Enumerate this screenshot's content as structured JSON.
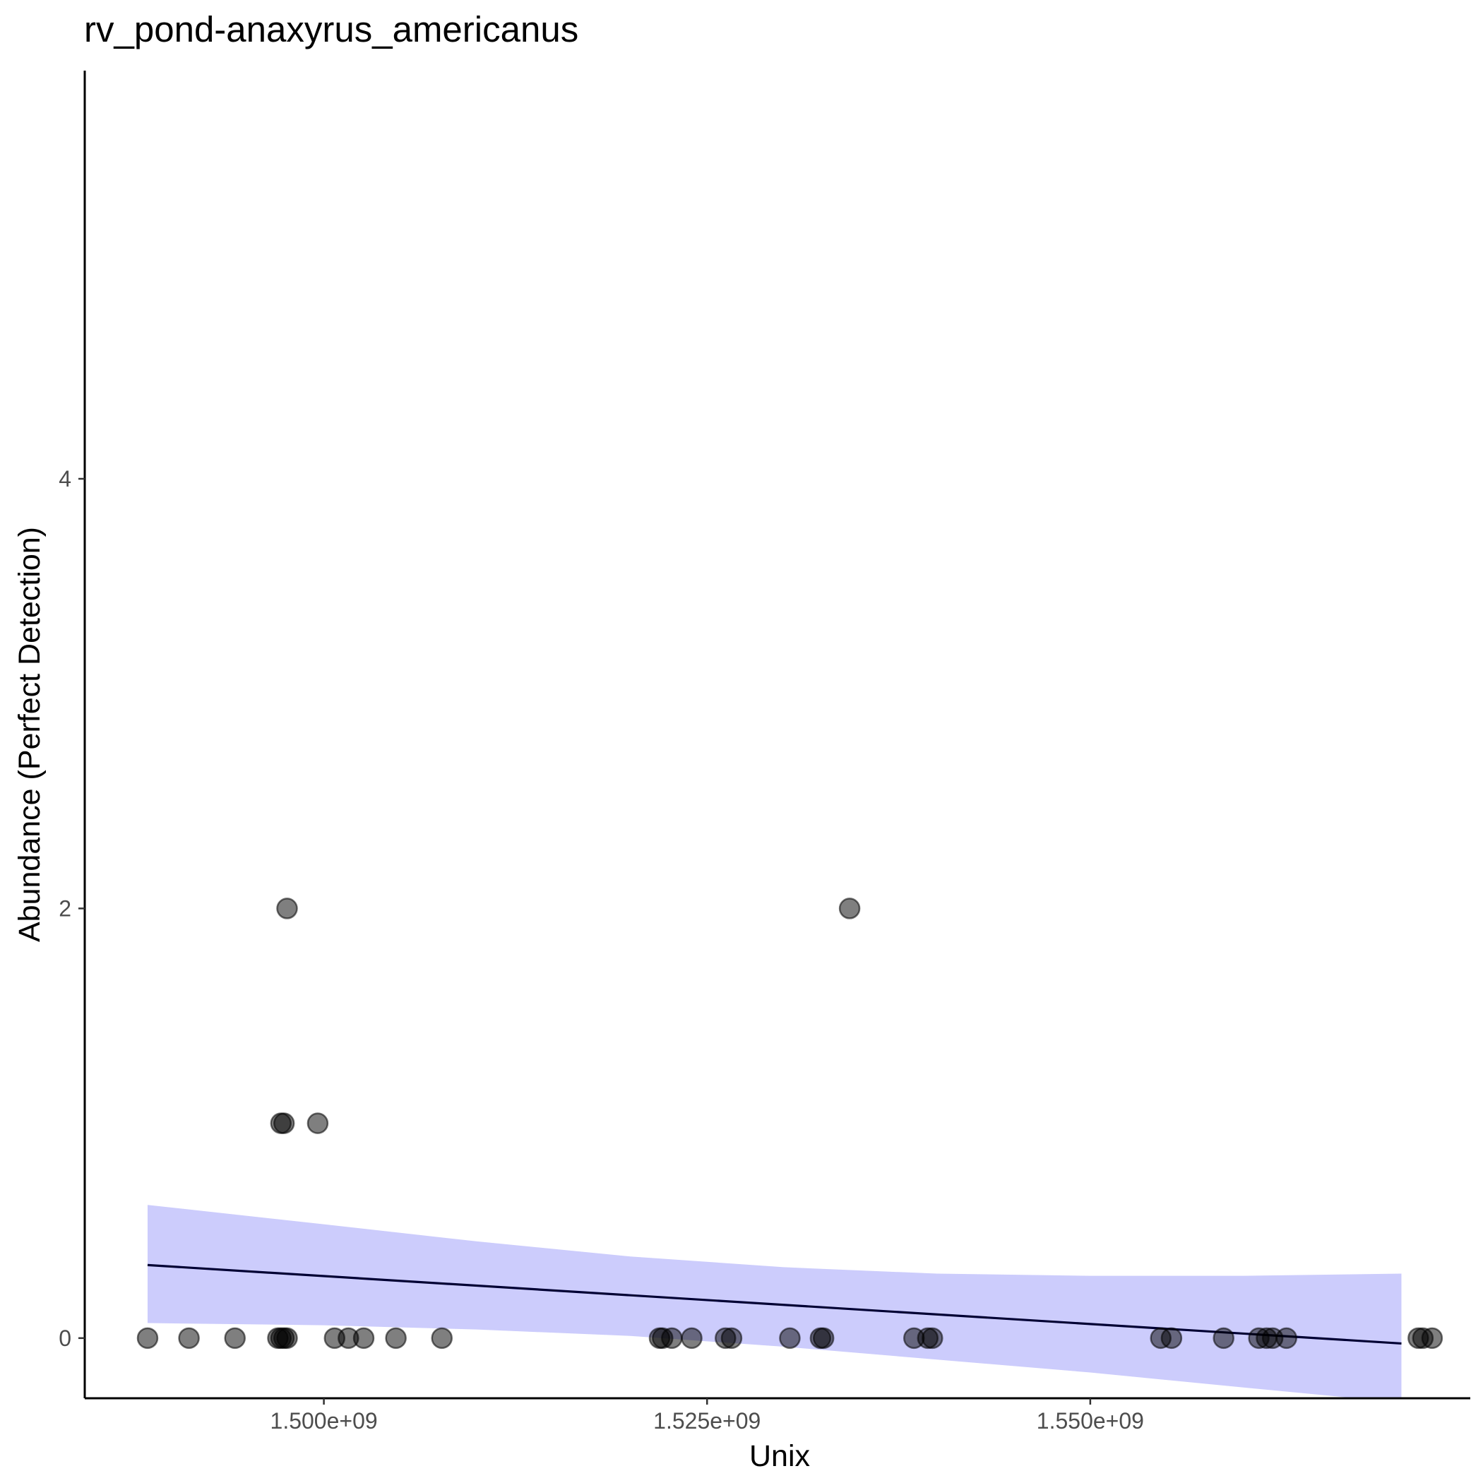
{
  "chart_data": {
    "type": "scatter",
    "title": "rv_pond-anaxyrus_americanus",
    "xlabel": "Unix",
    "ylabel": "Abundance (Perfect Detection)",
    "xlim": [
      1484400000,
      1574700000
    ],
    "ylim": [
      -0.28,
      5.9
    ],
    "x_ticks": [
      {
        "value": 1500000000,
        "label": "1.500e+09"
      },
      {
        "value": 1525000000,
        "label": "1.525e+09"
      },
      {
        "value": 1550000000,
        "label": "1.550e+09"
      }
    ],
    "y_ticks": [
      {
        "value": 0,
        "label": "0"
      },
      {
        "value": 2,
        "label": "2"
      },
      {
        "value": 4,
        "label": "4"
      }
    ],
    "grid": false,
    "legend": "none",
    "point_color": "#000000",
    "point_alpha": 0.5,
    "line_color": "#000033",
    "band_color": "#ccccfc",
    "points": [
      {
        "x": 1488500000,
        "y": 0
      },
      {
        "x": 1491200000,
        "y": 0
      },
      {
        "x": 1494200000,
        "y": 0
      },
      {
        "x": 1497000000,
        "y": 0
      },
      {
        "x": 1497200000,
        "y": 0
      },
      {
        "x": 1497400000,
        "y": 0
      },
      {
        "x": 1497600000,
        "y": 0
      },
      {
        "x": 1497200000,
        "y": 1
      },
      {
        "x": 1497400000,
        "y": 1
      },
      {
        "x": 1497600000,
        "y": 2
      },
      {
        "x": 1499600000,
        "y": 1
      },
      {
        "x": 1500700000,
        "y": 0
      },
      {
        "x": 1501600000,
        "y": 0
      },
      {
        "x": 1502600000,
        "y": 0
      },
      {
        "x": 1504700000,
        "y": 0
      },
      {
        "x": 1507700000,
        "y": 0
      },
      {
        "x": 1521900000,
        "y": 0
      },
      {
        "x": 1522100000,
        "y": 0
      },
      {
        "x": 1522700000,
        "y": 0
      },
      {
        "x": 1524000000,
        "y": 0
      },
      {
        "x": 1526200000,
        "y": 0
      },
      {
        "x": 1526600000,
        "y": 0
      },
      {
        "x": 1530400000,
        "y": 0
      },
      {
        "x": 1532400000,
        "y": 0
      },
      {
        "x": 1532600000,
        "y": 0
      },
      {
        "x": 1534300000,
        "y": 2
      },
      {
        "x": 1538500000,
        "y": 0
      },
      {
        "x": 1539400000,
        "y": 0
      },
      {
        "x": 1539700000,
        "y": 0
      },
      {
        "x": 1554600000,
        "y": 0
      },
      {
        "x": 1555300000,
        "y": 0
      },
      {
        "x": 1558700000,
        "y": 0
      },
      {
        "x": 1561000000,
        "y": 0
      },
      {
        "x": 1561500000,
        "y": 0
      },
      {
        "x": 1561900000,
        "y": 0
      },
      {
        "x": 1562800000,
        "y": 0
      },
      {
        "x": 1571400000,
        "y": 0
      },
      {
        "x": 1571700000,
        "y": 0
      },
      {
        "x": 1572300000,
        "y": 0
      }
    ],
    "fit_line": [
      {
        "x": 1488500000,
        "y": 0.34
      },
      {
        "x": 1570300000,
        "y": -0.025
      }
    ],
    "confidence_band": [
      {
        "x": 1488500000,
        "lower": 0.07,
        "upper": 0.62
      },
      {
        "x": 1500000000,
        "lower": 0.06,
        "upper": 0.53
      },
      {
        "x": 1510000000,
        "lower": 0.04,
        "upper": 0.45
      },
      {
        "x": 1520000000,
        "lower": 0.01,
        "upper": 0.38
      },
      {
        "x": 1530000000,
        "lower": -0.04,
        "upper": 0.33
      },
      {
        "x": 1540000000,
        "lower": -0.1,
        "upper": 0.3
      },
      {
        "x": 1550000000,
        "lower": -0.16,
        "upper": 0.29
      },
      {
        "x": 1560000000,
        "lower": -0.23,
        "upper": 0.29
      },
      {
        "x": 1570300000,
        "lower": -0.3,
        "upper": 0.3
      }
    ]
  }
}
